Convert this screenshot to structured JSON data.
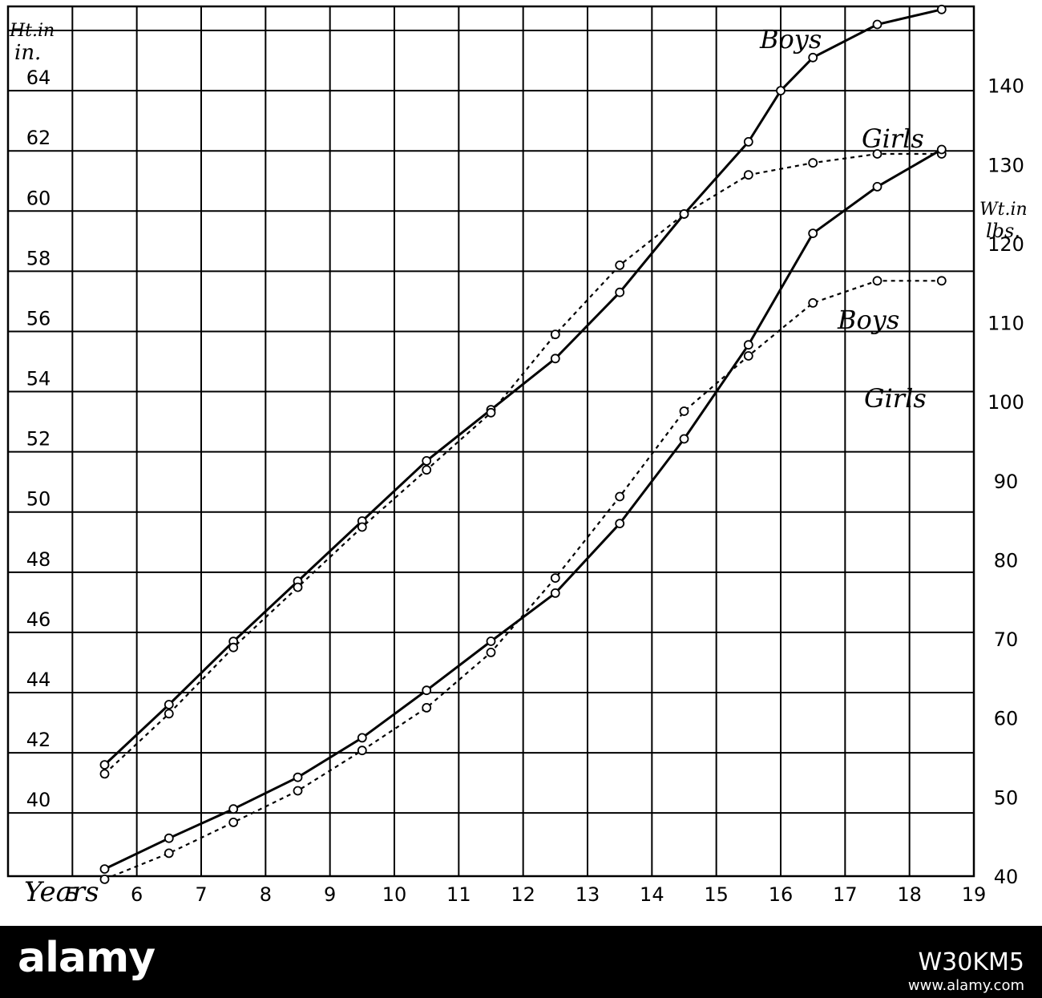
{
  "chart_data": {
    "type": "line",
    "x_axis_label": "Years",
    "x_ticks": [
      5,
      6,
      7,
      8,
      9,
      10,
      11,
      12,
      13,
      14,
      15,
      16,
      17,
      18,
      19
    ],
    "xlim": [
      4,
      19
    ],
    "left_axis": {
      "label_line1": "Ht.in",
      "label_line2": "in.",
      "ticks": [
        40,
        42,
        44,
        46,
        48,
        50,
        52,
        54,
        56,
        58,
        60,
        62,
        64
      ],
      "range": [
        37.9,
        66.8
      ]
    },
    "right_axis": {
      "label_line1": "Wt.in",
      "label_line2": "lbs.",
      "ticks": [
        40,
        50,
        60,
        70,
        80,
        90,
        100,
        110,
        120,
        130,
        140
      ],
      "range": [
        40,
        150
      ]
    },
    "series": [
      {
        "name": "Boys",
        "axis": "left",
        "style": "solid",
        "x": [
          5.5,
          6.5,
          7.5,
          8.5,
          9.5,
          10.5,
          11.5,
          12.5,
          13.5,
          14.5,
          15.5,
          16,
          16.5,
          17.5,
          18.5
        ],
        "y": [
          41.6,
          43.6,
          45.7,
          47.7,
          49.7,
          51.7,
          53.4,
          55.1,
          57.3,
          59.9,
          62.3,
          64.0,
          65.1,
          66.2,
          66.7
        ]
      },
      {
        "name": "Girls",
        "axis": "left",
        "style": "dotted",
        "x": [
          5.5,
          6.5,
          7.5,
          8.5,
          9.5,
          10.5,
          11.5,
          12.5,
          13.5,
          14.5,
          15.5,
          16.5,
          17.5,
          18.5
        ],
        "y": [
          41.3,
          43.3,
          45.5,
          47.5,
          49.5,
          51.4,
          53.3,
          55.9,
          58.2,
          59.9,
          61.2,
          61.6,
          61.9,
          61.9
        ]
      },
      {
        "name": "Boys",
        "axis": "right",
        "style": "solid",
        "x": [
          5.5,
          6.5,
          7.5,
          8.5,
          9.5,
          10.5,
          11.5,
          12.5,
          13.5,
          14.5,
          15.5,
          16.5,
          17.5,
          18.5
        ],
        "y": [
          40.9,
          44.8,
          48.5,
          52.5,
          57.5,
          63.5,
          69.7,
          75.8,
          84.6,
          95.3,
          107.2,
          121.3,
          127.2,
          131.9
        ]
      },
      {
        "name": "Girls",
        "axis": "right",
        "style": "dotted",
        "x": [
          5.5,
          6.5,
          7.5,
          8.5,
          9.5,
          10.5,
          11.5,
          12.5,
          13.5,
          14.5,
          15.5,
          16.5,
          17.5,
          18.5
        ],
        "y": [
          39.6,
          42.9,
          46.8,
          50.8,
          55.9,
          61.3,
          68.3,
          77.7,
          88.0,
          98.8,
          105.8,
          112.5,
          115.3,
          115.3
        ]
      }
    ]
  },
  "watermark": {
    "logo": "alamy",
    "image_id": "W30KM5",
    "url": "www.alamy.com"
  }
}
